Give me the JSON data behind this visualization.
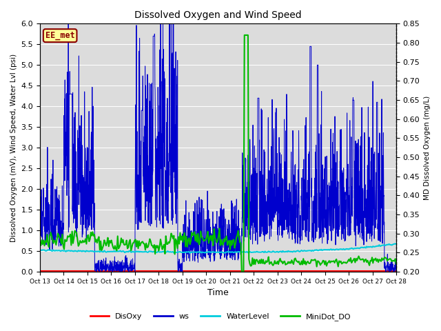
{
  "title": "Dissolved Oxygen and Wind Speed",
  "ylabel_left": "Dissolved Oxygen (mV), Wind Speed, Water Lvl (psi)",
  "ylabel_right": "MD Dissolved Oxygen (mg/L)",
  "xlabel": "Time",
  "ylim_left": [
    0.0,
    6.0
  ],
  "ylim_right": [
    0.2,
    0.85
  ],
  "yticks_left": [
    0.0,
    0.5,
    1.0,
    1.5,
    2.0,
    2.5,
    3.0,
    3.5,
    4.0,
    4.5,
    5.0,
    5.5,
    6.0
  ],
  "yticks_right": [
    0.2,
    0.25,
    0.3,
    0.35,
    0.4,
    0.45,
    0.5,
    0.55,
    0.6,
    0.65,
    0.7,
    0.75,
    0.8,
    0.85
  ],
  "xtick_labels": [
    "Oct 13",
    "Oct 14",
    "Oct 15",
    "Oct 16",
    "Oct 17",
    "Oct 18",
    "Oct 19",
    "Oct 20",
    "Oct 21",
    "Oct 22",
    "Oct 23",
    "Oct 24",
    "Oct 25",
    "Oct 26",
    "Oct 27",
    "Oct 28"
  ],
  "station_label": "EE_met",
  "station_label_color": "#8B0000",
  "station_box_facecolor": "#FFFF99",
  "station_box_edgecolor": "#8B0000",
  "colors": {
    "DisOxy": "#FF0000",
    "ws": "#0000CD",
    "WaterLevel": "#00CCDD",
    "MiniDot_DO": "#00BB00"
  },
  "bg_color": "#DCDCDC",
  "grid_color": "#FFFFFF",
  "linewidths": {
    "DisOxy": 1.5,
    "ws": 0.7,
    "WaterLevel": 1.5,
    "MiniDot_DO": 1.5
  }
}
